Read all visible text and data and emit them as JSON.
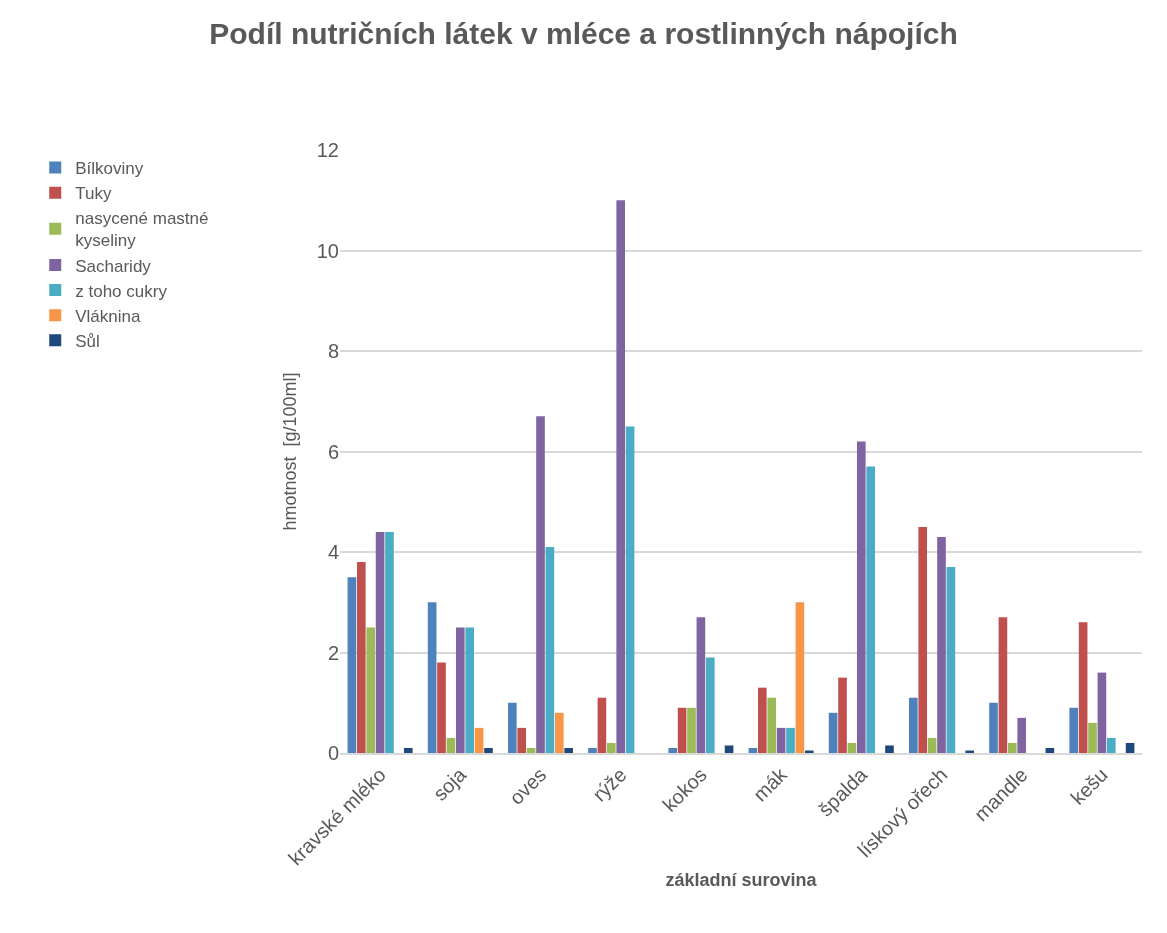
{
  "chart_data": {
    "type": "bar",
    "title": "Podíl nutričních látek v mléce a rostlinných nápojích",
    "xlabel": "základní surovina",
    "ylabel": "hmotnost  [g/100ml]",
    "categories": [
      "kravské mléko",
      "soja",
      "oves",
      "rýže",
      "kokos",
      "mák",
      "špalda",
      "lískový ořech",
      "mandle",
      "kešu"
    ],
    "series": [
      {
        "name": "Bílkoviny",
        "color": "#4f81bd",
        "values": [
          3.5,
          3.0,
          1.0,
          0.1,
          0.1,
          0.1,
          0.8,
          1.1,
          1.0,
          0.9
        ]
      },
      {
        "name": "Tuky",
        "color": "#c0504d",
        "values": [
          3.8,
          1.8,
          0.5,
          1.1,
          0.9,
          1.3,
          1.5,
          4.5,
          2.7,
          2.6
        ]
      },
      {
        "name": "nasycené mastné kyseliny",
        "color": "#9bbb59",
        "values": [
          2.5,
          0.3,
          0.1,
          0.2,
          0.9,
          1.1,
          0.2,
          0.3,
          0.2,
          0.6
        ]
      },
      {
        "name": "Sacharidy",
        "color": "#8064a2",
        "values": [
          4.4,
          2.5,
          6.7,
          11.0,
          2.7,
          0.5,
          6.2,
          4.3,
          0.7,
          1.6
        ]
      },
      {
        "name": "z toho cukry",
        "color": "#4bacc6",
        "values": [
          4.4,
          2.5,
          4.1,
          6.5,
          1.9,
          0.5,
          5.7,
          3.7,
          0,
          0.3
        ]
      },
      {
        "name": "Vláknina",
        "color": "#f79646",
        "values": [
          0,
          0.5,
          0.8,
          0,
          0,
          3.0,
          0,
          0,
          0,
          0
        ]
      },
      {
        "name": "Sůl",
        "color": "#1f497d",
        "values": [
          0.1,
          0.1,
          0.1,
          0,
          0.15,
          0.05,
          0.15,
          0.05,
          0.1,
          0.2
        ]
      }
    ],
    "ylim": [
      0,
      12
    ],
    "yticks": [
      0,
      2,
      4,
      6,
      8,
      10,
      12
    ],
    "grid": "y",
    "legend": "left"
  }
}
